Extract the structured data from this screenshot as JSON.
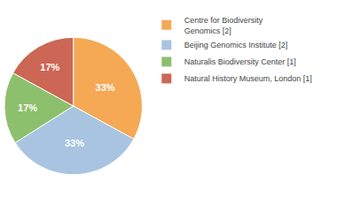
{
  "chart_data": {
    "type": "pie",
    "categories": [
      "Centre for Biodiversity\nGenomics [2]",
      "Beijing Genomics Institute [2]",
      "Naturalis Biodiversity Center [1]",
      "Natural History Museum, London [1]"
    ],
    "values": [
      33,
      33,
      17,
      17
    ],
    "value_labels": [
      "33%",
      "33%",
      "17%",
      "17%"
    ],
    "colors": [
      "#F5A955",
      "#A8C4E0",
      "#8DC06C",
      "#CC6655"
    ],
    "data_labels": true,
    "legend": "upper right"
  }
}
